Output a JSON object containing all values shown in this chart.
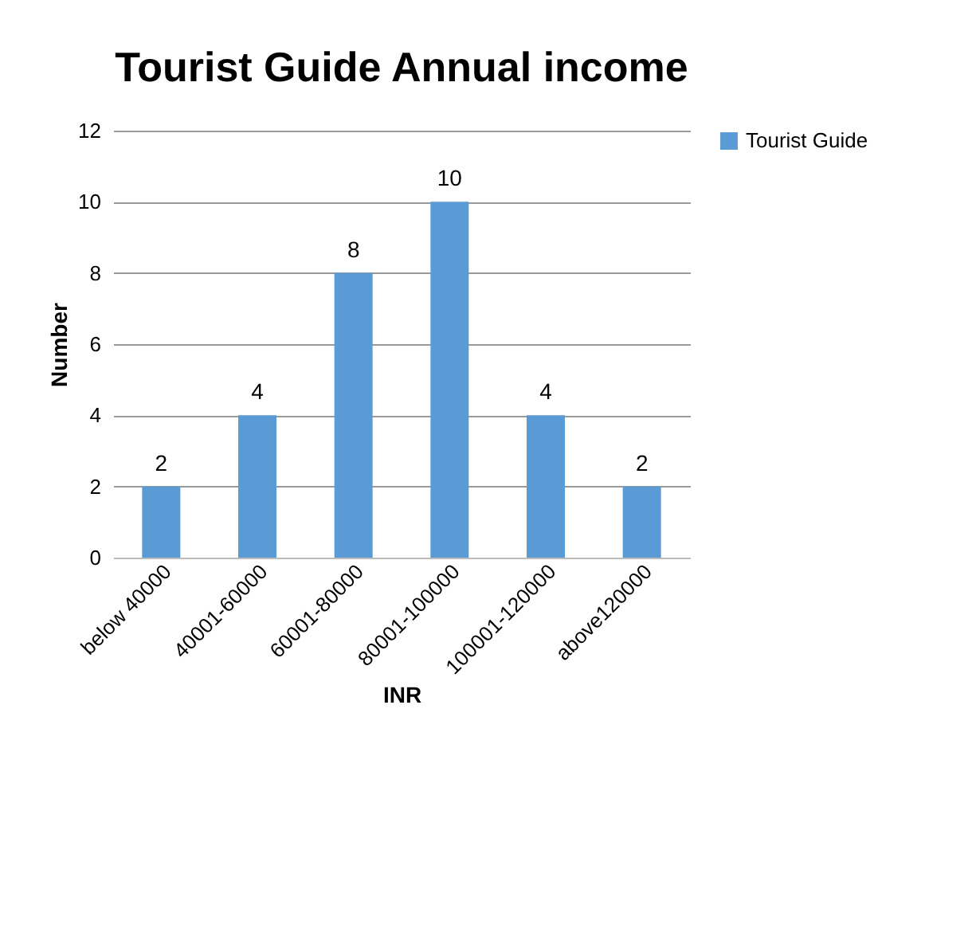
{
  "chart_data": {
    "type": "bar",
    "title": "Tourist Guide Annual income",
    "xlabel": "INR",
    "ylabel": "Number",
    "categories": [
      "below 40000",
      "40001-60000",
      "60001-80000",
      "80001-100000",
      "100001-120000",
      "above120000"
    ],
    "series": [
      {
        "name": "Tourist Guide",
        "color": "#5b9bd5",
        "values": [
          2,
          4,
          8,
          10,
          4,
          2
        ]
      }
    ],
    "ylim": [
      0,
      12
    ],
    "yticks": [
      0,
      2,
      4,
      6,
      8,
      10,
      12
    ],
    "grid": "y",
    "legend": "right",
    "data_labels": true
  }
}
